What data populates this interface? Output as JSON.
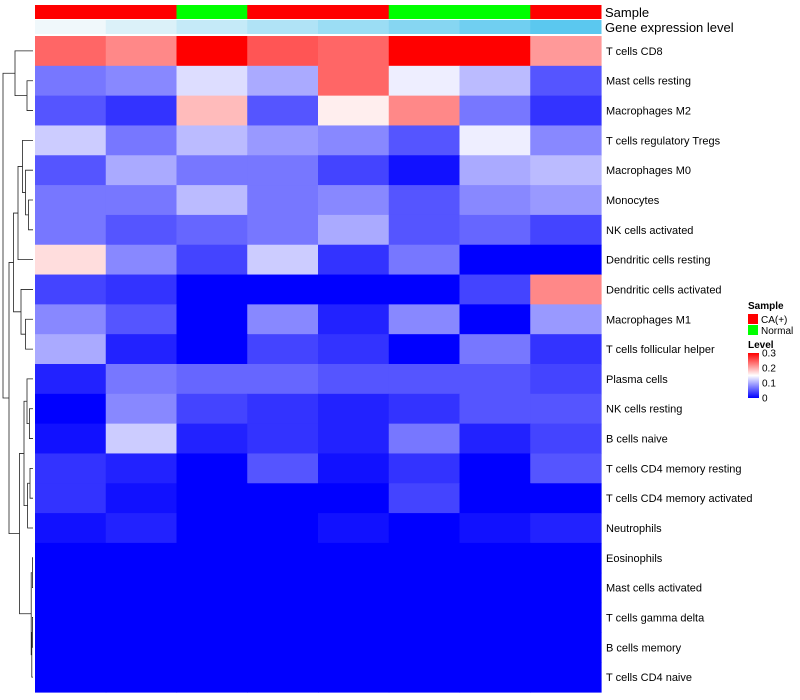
{
  "chart_data": {
    "type": "heatmap",
    "annotation_labels": {
      "sample": "Sample",
      "gene_expression": "Gene expression level"
    },
    "sample_groups": [
      "CA(+)",
      "CA(+)",
      "Normal",
      "CA(+)",
      "CA(+)",
      "Normal",
      "Normal",
      "CA(+)"
    ],
    "gene_expression_level": [
      0.02,
      0.06,
      0.1,
      0.14,
      0.18,
      0.22,
      0.26,
      0.3
    ],
    "rows": [
      "T cells CD8",
      "Mast cells resting",
      "Macrophages M2",
      "T cells regulatory  Tregs",
      "Macrophages M0",
      "Monocytes",
      "NK cells activated",
      "Dendritic cells resting",
      "Dendritic cells activated",
      "Macrophages M1",
      "T cells follicular helper",
      "Plasma cells",
      "NK cells resting",
      "B cells naive",
      "T cells CD4 memory resting",
      "T cells CD4 memory activated",
      "Neutrophils",
      "Eosinophils",
      "Mast cells activated",
      "T cells gamma delta",
      "B cells memory",
      "T cells CD4 naive"
    ],
    "values": [
      [
        0.24,
        0.22,
        0.3,
        0.25,
        0.24,
        0.3,
        0.3,
        0.21
      ],
      [
        0.07,
        0.08,
        0.13,
        0.1,
        0.24,
        0.14,
        0.11,
        0.05
      ],
      [
        0.05,
        0.03,
        0.19,
        0.05,
        0.16,
        0.22,
        0.07,
        0.03
      ],
      [
        0.12,
        0.07,
        0.11,
        0.09,
        0.08,
        0.05,
        0.14,
        0.08
      ],
      [
        0.05,
        0.1,
        0.07,
        0.07,
        0.04,
        0.01,
        0.1,
        0.11
      ],
      [
        0.07,
        0.07,
        0.11,
        0.07,
        0.08,
        0.05,
        0.08,
        0.09
      ],
      [
        0.07,
        0.05,
        0.06,
        0.07,
        0.1,
        0.05,
        0.06,
        0.04
      ],
      [
        0.17,
        0.08,
        0.04,
        0.12,
        0.03,
        0.07,
        0.0,
        0.0
      ],
      [
        0.04,
        0.03,
        0.0,
        0.0,
        0.0,
        0.0,
        0.04,
        0.22
      ],
      [
        0.08,
        0.05,
        0.0,
        0.08,
        0.02,
        0.08,
        0.0,
        0.09
      ],
      [
        0.1,
        0.02,
        0.0,
        0.04,
        0.03,
        0.0,
        0.07,
        0.03
      ],
      [
        0.02,
        0.07,
        0.06,
        0.06,
        0.05,
        0.05,
        0.05,
        0.04
      ],
      [
        0.0,
        0.08,
        0.04,
        0.03,
        0.02,
        0.03,
        0.05,
        0.05
      ],
      [
        0.01,
        0.12,
        0.02,
        0.03,
        0.02,
        0.07,
        0.02,
        0.04
      ],
      [
        0.03,
        0.02,
        0.0,
        0.05,
        0.01,
        0.03,
        0.0,
        0.05
      ],
      [
        0.03,
        0.01,
        0.0,
        0.0,
        0.0,
        0.04,
        0.0,
        0.0
      ],
      [
        0.01,
        0.02,
        0.0,
        0.0,
        0.01,
        0.0,
        0.01,
        0.02
      ],
      [
        0.0,
        0.0,
        0.0,
        0.0,
        0.0,
        0.0,
        0.0,
        0.0
      ],
      [
        0.0,
        0.0,
        0.0,
        0.0,
        0.0,
        0.0,
        0.0,
        0.0
      ],
      [
        0.0,
        0.0,
        0.0,
        0.0,
        0.0,
        0.0,
        0.0,
        0.0
      ],
      [
        0.0,
        0.0,
        0.0,
        0.0,
        0.0,
        0.0,
        0.0,
        0.0
      ],
      [
        0.0,
        0.0,
        0.0,
        0.0,
        0.0,
        0.0,
        0.0,
        0.0
      ]
    ],
    "value_range": [
      0,
      0.3
    ],
    "legend": {
      "sample_title": "Sample",
      "sample_entries": [
        {
          "label": "CA(+)",
          "color": "#ff0000"
        },
        {
          "label": "Normal",
          "color": "#00ff00"
        }
      ],
      "level_title": "Level",
      "level_ticks": [
        "0.3",
        "0.2",
        "0.1",
        "0"
      ],
      "level_tick_values": [
        0.3,
        0.2,
        0.1,
        0
      ]
    },
    "colors": {
      "low": "#0000ff",
      "mid": "#ffffff",
      "high": "#ff0000",
      "anno_low": "#f0f8fb",
      "anno_high": "#5bc8ef"
    }
  }
}
